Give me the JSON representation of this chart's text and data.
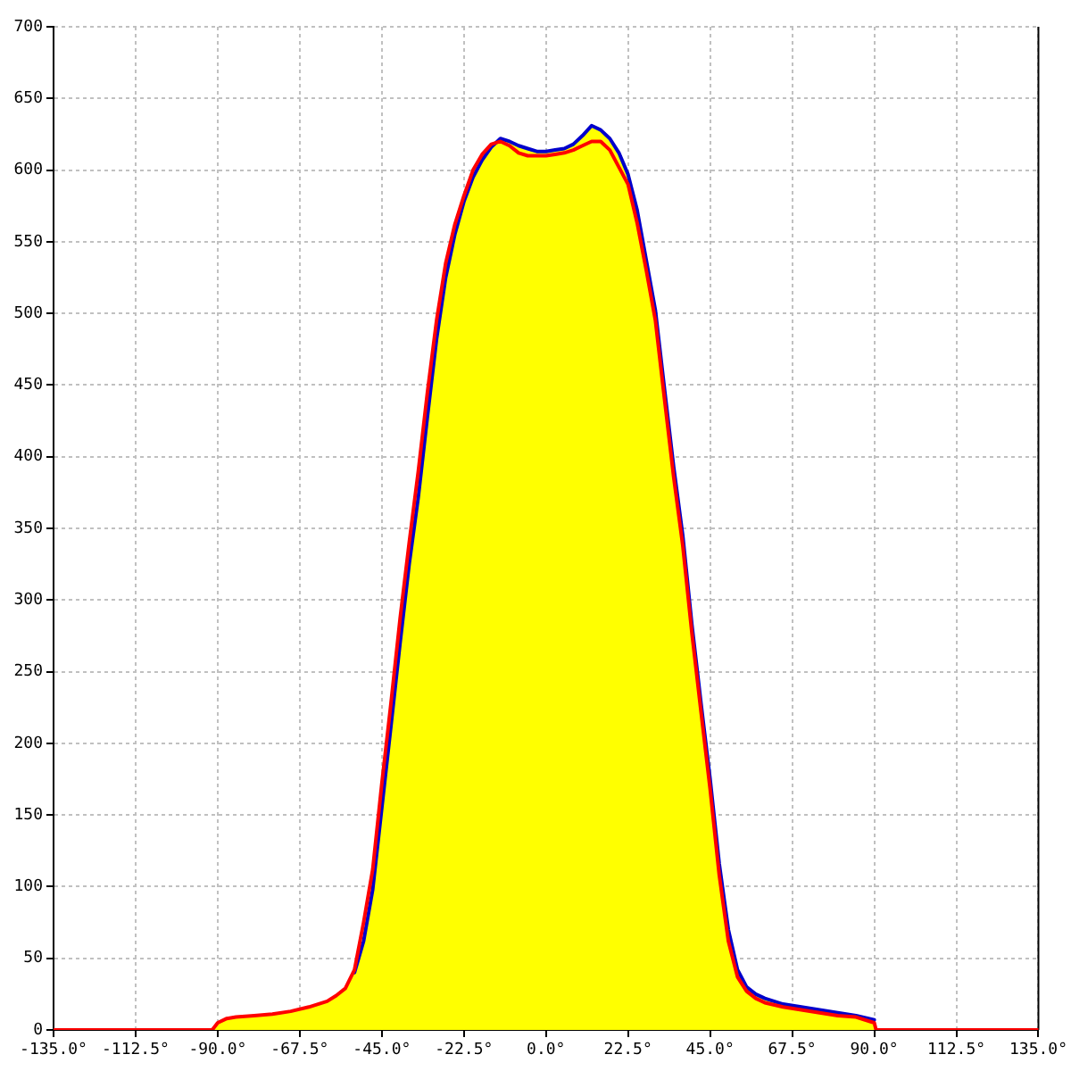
{
  "chart_data": {
    "type": "line",
    "x": [
      -135,
      -91.5,
      -90,
      -87.5,
      -85,
      -80,
      -75,
      -70,
      -65,
      -60,
      -57.5,
      -55,
      -52.5,
      -50,
      -47.5,
      -45,
      -42.5,
      -40,
      -37.5,
      -35,
      -32.5,
      -30,
      -27.5,
      -25,
      -22.5,
      -20,
      -17.5,
      -15,
      -12.5,
      -10,
      -7.5,
      -5,
      -2.5,
      0,
      2.5,
      5,
      7.5,
      10,
      12.5,
      15,
      17.5,
      20,
      22.5,
      25,
      27.5,
      30,
      32.5,
      35,
      37.5,
      40,
      42.5,
      45,
      47.5,
      50,
      52.5,
      55,
      57.5,
      60,
      65,
      70,
      75,
      80,
      85,
      90,
      90.5,
      135
    ],
    "series": [
      {
        "color": "#ff0000",
        "values": [
          0,
          0,
          5,
          8,
          9,
          10,
          11,
          13,
          16,
          20,
          24,
          29,
          42,
          75,
          112,
          172,
          228,
          287,
          340,
          390,
          445,
          495,
          535,
          562,
          582,
          600,
          611,
          618,
          620,
          617,
          612,
          610,
          610,
          610,
          611,
          612,
          614,
          617,
          620,
          620,
          614,
          602,
          590,
          563,
          530,
          495,
          440,
          386,
          338,
          277,
          222,
          168,
          108,
          62,
          37,
          27,
          22,
          19,
          16,
          14,
          12,
          10,
          9,
          5,
          0,
          0
        ]
      },
      {
        "color": "#0000cc",
        "values": [
          null,
          null,
          null,
          null,
          null,
          null,
          null,
          null,
          null,
          null,
          null,
          null,
          40,
          62,
          98,
          155,
          212,
          270,
          325,
          372,
          428,
          482,
          525,
          555,
          578,
          595,
          607,
          616,
          622,
          620,
          617,
          615,
          613,
          613,
          614,
          615,
          618,
          624,
          631,
          628,
          622,
          612,
          597,
          572,
          537,
          502,
          447,
          393,
          345,
          283,
          228,
          175,
          116,
          70,
          42,
          30,
          25,
          22,
          18,
          16,
          14,
          12,
          10,
          7,
          null,
          null
        ]
      },
      {
        "type": "area",
        "color": "#ffff00",
        "values": [
          0,
          0,
          5,
          8,
          9,
          10,
          11,
          13,
          16,
          20,
          24,
          29,
          40,
          62,
          98,
          155,
          212,
          270,
          325,
          372,
          428,
          482,
          525,
          555,
          578,
          595,
          607,
          616,
          622,
          620,
          617,
          615,
          613,
          613,
          614,
          615,
          618,
          624,
          631,
          628,
          622,
          612,
          597,
          572,
          537,
          502,
          447,
          393,
          345,
          283,
          228,
          175,
          116,
          70,
          42,
          30,
          25,
          22,
          18,
          16,
          14,
          12,
          10,
          7,
          0,
          0
        ]
      }
    ],
    "xlim": [
      -135,
      135
    ],
    "xticks": [
      {
        "value": -135,
        "label": "-135.0°"
      },
      {
        "value": -112.5,
        "label": "-112.5°"
      },
      {
        "value": -90,
        "label": "-90.0°"
      },
      {
        "value": -67.5,
        "label": "-67.5°"
      },
      {
        "value": -45,
        "label": "-45.0°"
      },
      {
        "value": -22.5,
        "label": "-22.5°"
      },
      {
        "value": 0,
        "label": "0.0°"
      },
      {
        "value": 22.5,
        "label": "22.5°"
      },
      {
        "value": 45,
        "label": "45.0°"
      },
      {
        "value": 67.5,
        "label": "67.5°"
      },
      {
        "value": 90,
        "label": "90.0°"
      },
      {
        "value": 112.5,
        "label": "112.5°"
      },
      {
        "value": 135,
        "label": "135.0°"
      }
    ],
    "ylim": [
      0,
      700
    ],
    "yticks": [
      0,
      50,
      100,
      150,
      200,
      250,
      300,
      350,
      400,
      450,
      500,
      550,
      600,
      650,
      700
    ],
    "grid": true,
    "marker": "none"
  }
}
